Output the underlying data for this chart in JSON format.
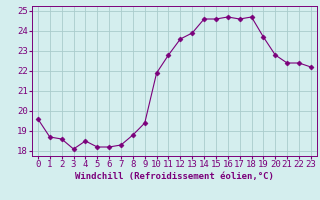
{
  "x": [
    0,
    1,
    2,
    3,
    4,
    5,
    6,
    7,
    8,
    9,
    10,
    11,
    12,
    13,
    14,
    15,
    16,
    17,
    18,
    19,
    20,
    21,
    22,
    23
  ],
  "y": [
    19.6,
    18.7,
    18.6,
    18.1,
    18.5,
    18.2,
    18.2,
    18.3,
    18.8,
    19.4,
    21.9,
    22.8,
    23.6,
    23.9,
    24.6,
    24.6,
    24.7,
    24.6,
    24.7,
    23.7,
    22.8,
    22.4,
    22.4,
    22.2
  ],
  "line_color": "#7B007B",
  "marker": "D",
  "marker_size": 2.5,
  "bg_color": "#d4eeee",
  "grid_color": "#aacccc",
  "xlabel": "Windchill (Refroidissement éolien,°C)",
  "ylim": [
    17.75,
    25.25
  ],
  "yticks": [
    18,
    19,
    20,
    21,
    22,
    23,
    24,
    25
  ],
  "xlim": [
    -0.5,
    23.5
  ],
  "tick_color": "#7B007B",
  "xlabel_fontsize": 6.5,
  "tick_fontsize": 6.5,
  "lw": 0.8
}
